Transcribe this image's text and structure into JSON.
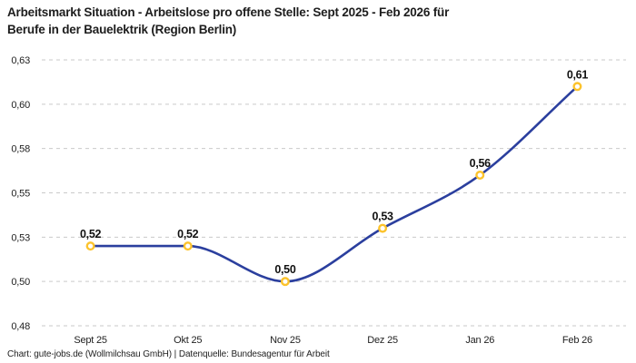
{
  "title": {
    "line1": "Arbeitsmarkt Situation - Arbeitslose pro offene Stelle: Sept 2025 - Feb 2026 für",
    "line2": "Berufe in der Bauelektrik (Region Berlin)"
  },
  "chart_data": {
    "type": "line",
    "title": "Arbeitsmarkt Situation - Arbeitslose pro offene Stelle: Sept 2025 - Feb 2026 für Berufe in der Bauelektrik (Region Berlin)",
    "categories": [
      "Sept 25",
      "Okt 25",
      "Nov 25",
      "Dez 25",
      "Jan 26",
      "Feb 26"
    ],
    "values": [
      0.52,
      0.52,
      0.5,
      0.53,
      0.56,
      0.61
    ],
    "value_labels": [
      "0,52",
      "0,52",
      "0,50",
      "0,53",
      "0,56",
      "0,61"
    ],
    "xlabel": "",
    "ylabel": "",
    "ylim": [
      0.475,
      0.625
    ],
    "yticks": [
      {
        "value": 0.625,
        "label": "0,63"
      },
      {
        "value": 0.6,
        "label": "0,60"
      },
      {
        "value": 0.575,
        "label": "0,58"
      },
      {
        "value": 0.55,
        "label": "0,55"
      },
      {
        "value": 0.525,
        "label": "0,53"
      },
      {
        "value": 0.5,
        "label": "0,50"
      },
      {
        "value": 0.475,
        "label": "0,48"
      }
    ],
    "grid": "horizontal-dashed",
    "legend": "none",
    "curve": "monotone",
    "colors": {
      "line": "#2B3F9E",
      "marker_ring": "#FCC32C",
      "marker_fill": "#FFFFFF",
      "grid": "#C9C9C9",
      "text": "#222222",
      "data_label": "#111111"
    },
    "source": "Chart: gute-jobs.de (Wollmilchsau GmbH) | Datenquelle: Bundesagentur für Arbeit"
  }
}
